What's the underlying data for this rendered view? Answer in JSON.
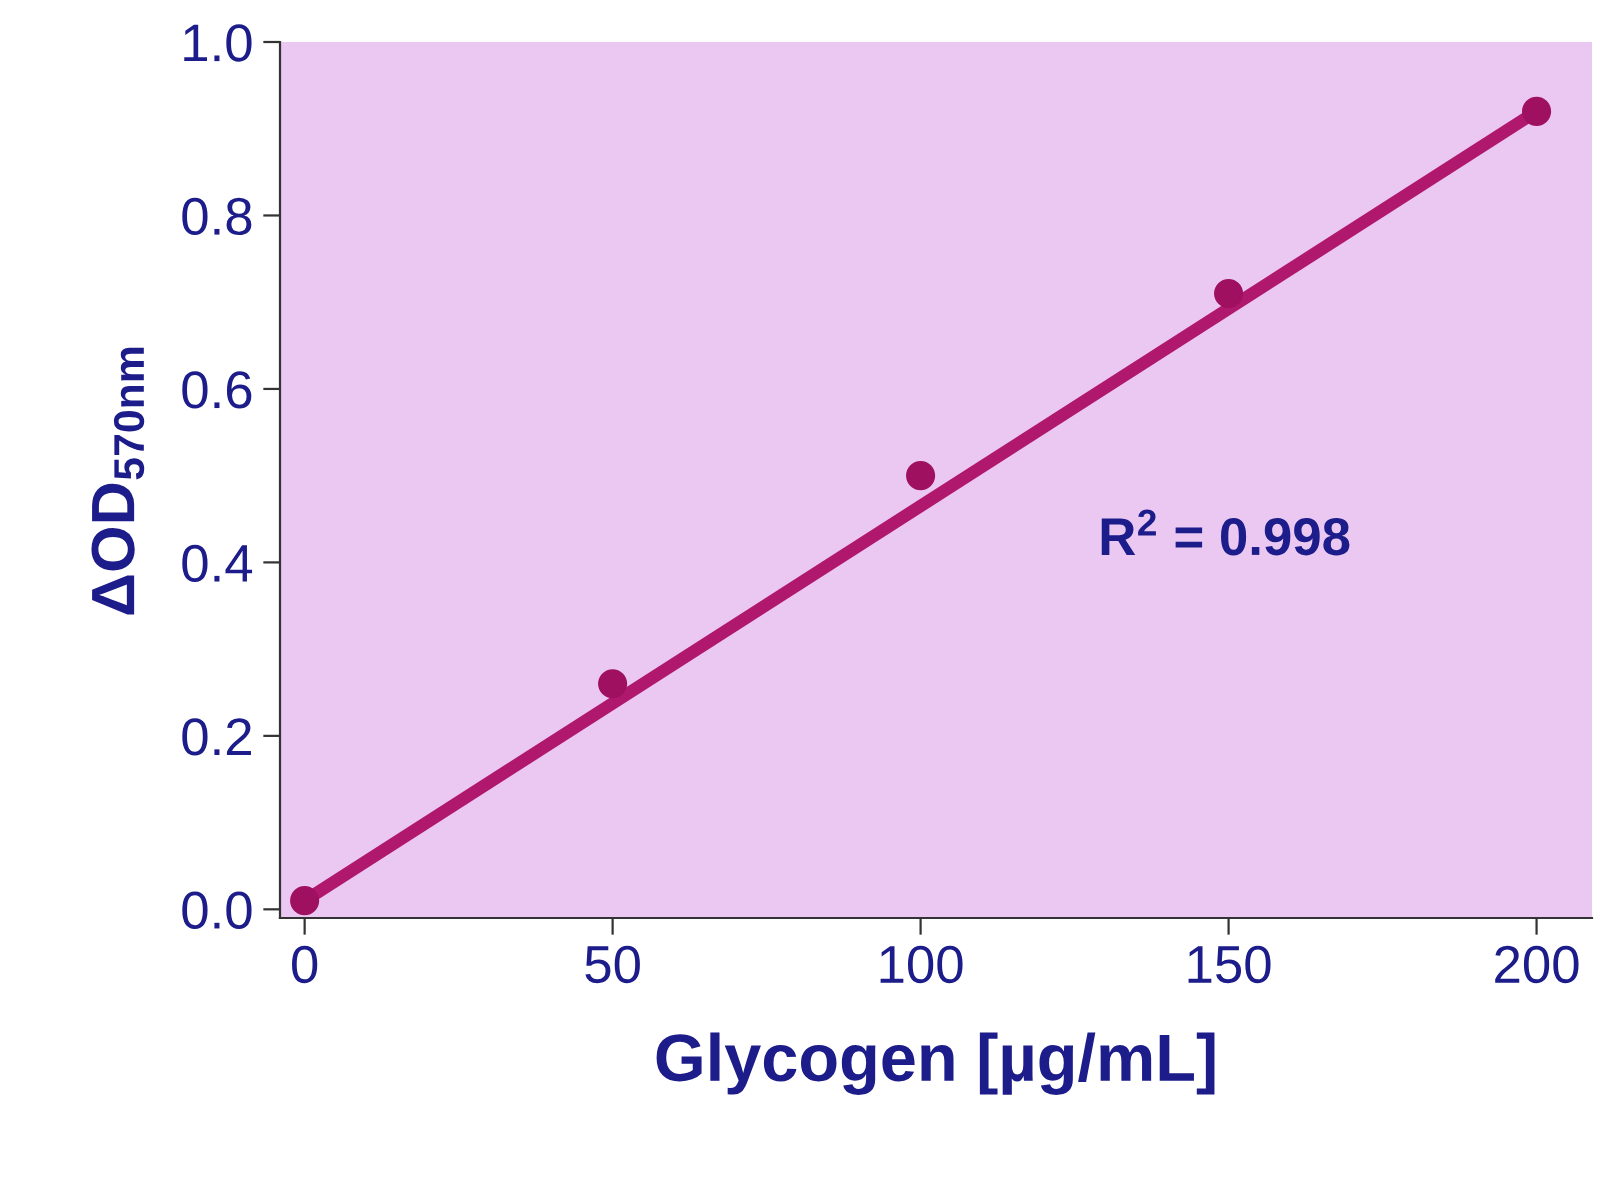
{
  "chart_data": {
    "type": "scatter",
    "xlabel": "Glycogen [µg/mL]",
    "ylabel": "ΔOD$_{570nm}$",
    "x": [
      0,
      50,
      100,
      150,
      200
    ],
    "series": [
      {
        "color": "#a01060",
        "values": [
          0.01,
          0.26,
          0.5,
          0.71,
          0.92
        ],
        "marker": "circle"
      },
      {
        "type": "line",
        "color": "#b0186e",
        "x": [
          0,
          200
        ],
        "values": [
          0.01,
          0.92
        ],
        "marker": "none",
        "line_style": "solid"
      }
    ],
    "annotations": [
      "R$^{2}$ = 0.998"
    ],
    "xlim": [
      -4,
      209
    ],
    "ylim": [
      -0.01,
      1.0
    ],
    "xticks": [
      0,
      50,
      100,
      150,
      200
    ],
    "yticks": [
      {
        "value": 0,
        "label": "0.0"
      },
      {
        "value": 0.2,
        "label": "0.2"
      },
      {
        "value": 0.4,
        "label": "0.4"
      },
      {
        "value": 0.6,
        "label": "0.6"
      },
      {
        "value": 0.8,
        "label": "0.8"
      },
      {
        "value": 1.0,
        "label": "1.0"
      }
    ],
    "grid": false
  }
}
